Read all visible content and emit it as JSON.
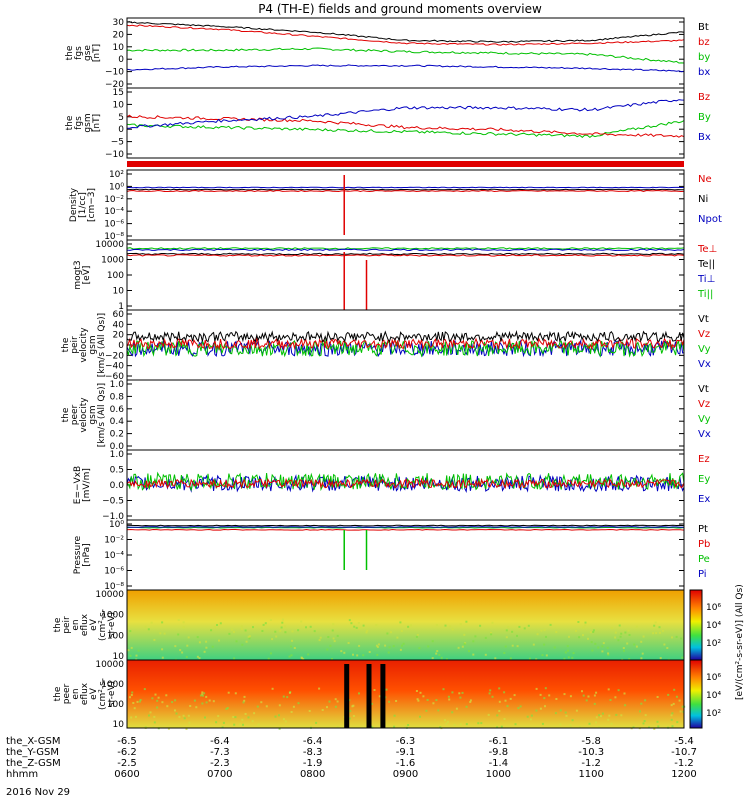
{
  "title": "P4 (TH-E) fields and ground moments overview",
  "date_label": "2016 Nov 29",
  "panels": [
    {
      "id": "fgs_gse",
      "ylabel": [
        "the",
        "fgs",
        "gse",
        "[nT]"
      ],
      "ticks": [
        "30",
        "20",
        "10",
        "0",
        "−10",
        "−20"
      ],
      "legend": [
        {
          "text": "Bt",
          "color": "#000000"
        },
        {
          "text": "bz",
          "color": "#e00000"
        },
        {
          "text": "by",
          "color": "#00c000"
        },
        {
          "text": "bx",
          "color": "#0000c0"
        }
      ]
    },
    {
      "id": "fgs_gsm",
      "ylabel": [
        "the",
        "fgs",
        "gsm",
        "[nT]"
      ],
      "ticks": [
        "15",
        "10",
        "5",
        "0",
        "−5",
        "−10"
      ],
      "legend": [
        {
          "text": "Bz",
          "color": "#e00000"
        },
        {
          "text": "By",
          "color": "#00c000"
        },
        {
          "text": "Bx",
          "color": "#0000c0"
        }
      ]
    },
    {
      "id": "density",
      "ylabel": [
        "Density",
        "[1/cc]",
        "[cm−3]"
      ],
      "ticks": [
        "10²",
        "10⁰",
        "10⁻²",
        "10⁻⁴",
        "10⁻⁶",
        "10⁻⁸"
      ],
      "legend": [
        {
          "text": "Ne",
          "color": "#e00000"
        },
        {
          "text": "Ni",
          "color": "#000000"
        },
        {
          "text": "Npot",
          "color": "#0000c0"
        }
      ]
    },
    {
      "id": "temperature",
      "ylabel": [
        "mogt3",
        "[eV]"
      ],
      "ticks": [
        "10000",
        "1000",
        "100",
        "10",
        "1"
      ],
      "legend": [
        {
          "text": "Te⊥",
          "color": "#e00000"
        },
        {
          "text": "Te||",
          "color": "#000000"
        },
        {
          "text": "Ti⊥",
          "color": "#0000c0"
        },
        {
          "text": "Ti||",
          "color": "#00c000"
        }
      ]
    },
    {
      "id": "peir_velocity",
      "ylabel": [
        "the",
        "peir",
        "velocity",
        "gsm",
        "[km/s (All Qs)]"
      ],
      "ticks": [
        "60",
        "40",
        "20",
        "0",
        "−20",
        "−40",
        "−60"
      ],
      "legend": [
        {
          "text": "Vt",
          "color": "#000000"
        },
        {
          "text": "Vz",
          "color": "#e00000"
        },
        {
          "text": "Vy",
          "color": "#00c000"
        },
        {
          "text": "Vx",
          "color": "#0000c0"
        }
      ]
    },
    {
      "id": "peer_velocity",
      "ylabel": [
        "the",
        "peer",
        "velocity",
        "gsm",
        "[km/s (All Qs)]"
      ],
      "ticks": [
        "1.0",
        "0.8",
        "0.6",
        "0.4",
        "0.2",
        "0.0"
      ],
      "legend": [
        {
          "text": "Vt",
          "color": "#000000"
        },
        {
          "text": "Vz",
          "color": "#e00000"
        },
        {
          "text": "Vy",
          "color": "#00c000"
        },
        {
          "text": "Vx",
          "color": "#0000c0"
        }
      ]
    },
    {
      "id": "efield",
      "ylabel": [
        "E=−VxB",
        "[mV/m]"
      ],
      "ticks": [
        "1.0",
        "0.5",
        "0.0",
        "−0.5",
        "−1.0"
      ],
      "legend": [
        {
          "text": "Ez",
          "color": "#e00000"
        },
        {
          "text": "Ey",
          "color": "#00c000"
        },
        {
          "text": "Ex",
          "color": "#0000c0"
        }
      ]
    },
    {
      "id": "pressure",
      "ylabel": [
        "Pressure",
        "[nPa]"
      ],
      "ticks": [
        "10⁰",
        "10⁻²",
        "10⁻⁴",
        "10⁻⁶",
        "10⁻⁸"
      ],
      "legend": [
        {
          "text": "Pt",
          "color": "#000000"
        },
        {
          "text": "Pb",
          "color": "#e00000"
        },
        {
          "text": "Pe",
          "color": "#00c000"
        },
        {
          "text": "Pi",
          "color": "#0000c0"
        }
      ]
    },
    {
      "id": "peir_en_eflux",
      "ylabel": [
        "the",
        "peir",
        "en",
        "eflux",
        "eV",
        "(cm²-s-",
        "sr-eV)"
      ],
      "ticks": [
        "10000",
        "1000",
        "100",
        "10"
      ],
      "cbar_ticks": [
        "10⁶",
        "10⁴",
        "10²"
      ]
    },
    {
      "id": "peer_en_eflux",
      "ylabel": [
        "the",
        "peer",
        "en",
        "eflux",
        "eV",
        "(cm²-s-",
        "sr-eV)"
      ],
      "ticks": [
        "10000",
        "1000",
        "100",
        "10"
      ],
      "cbar_ticks": [
        "10⁶",
        "10⁴",
        "10²"
      ]
    }
  ],
  "colorbar_label": "[eV/(cm²-s-sr-eV)] (All Qs)",
  "xaxis": {
    "rows": [
      {
        "label": "the_X-GSM",
        "values": [
          "-6.5",
          "-6.4",
          "-6.4",
          "-6.3",
          "-6.1",
          "-5.8",
          "-5.4"
        ]
      },
      {
        "label": "the_Y-GSM",
        "values": [
          "-6.2",
          "-7.3",
          "-8.3",
          "-9.1",
          "-9.8",
          "-10.3",
          "-10.7"
        ]
      },
      {
        "label": "the_Z-GSM",
        "values": [
          "-2.5",
          "-2.3",
          "-1.9",
          "-1.6",
          "-1.4",
          "-1.2",
          "-1.2"
        ]
      },
      {
        "label": "hhmm",
        "values": [
          "0600",
          "0700",
          "0800",
          "0900",
          "1000",
          "1100",
          "1200"
        ]
      }
    ]
  },
  "chart_data": {
    "type": "line",
    "title": "P4 (TH-E) fields and ground moments overview",
    "x": [
      "0600",
      "0700",
      "0800",
      "0900",
      "1000",
      "1100",
      "1200"
    ],
    "xlabel": "hhmm",
    "series": [
      {
        "name": "Bt",
        "values": [
          27,
          24,
          20,
          14,
          13,
          14,
          20
        ]
      },
      {
        "name": "bz",
        "values": [
          25,
          22,
          17,
          12,
          11,
          12,
          14
        ]
      },
      {
        "name": "by",
        "values": [
          7,
          7,
          8,
          6,
          5,
          4,
          -2
        ]
      },
      {
        "name": "bx",
        "values": [
          -7,
          -5,
          -4,
          -4,
          -5,
          -6,
          -8
        ]
      },
      {
        "name": "Bz",
        "values": [
          4,
          3,
          2,
          -1,
          -2,
          -4,
          -5
        ]
      },
      {
        "name": "By",
        "values": [
          0,
          -1,
          -2,
          -3,
          -4,
          -5,
          2
        ]
      },
      {
        "name": "Bx",
        "values": [
          -1,
          2,
          4,
          8,
          8,
          7,
          12
        ]
      }
    ],
    "ylim": [
      -20,
      30
    ]
  }
}
